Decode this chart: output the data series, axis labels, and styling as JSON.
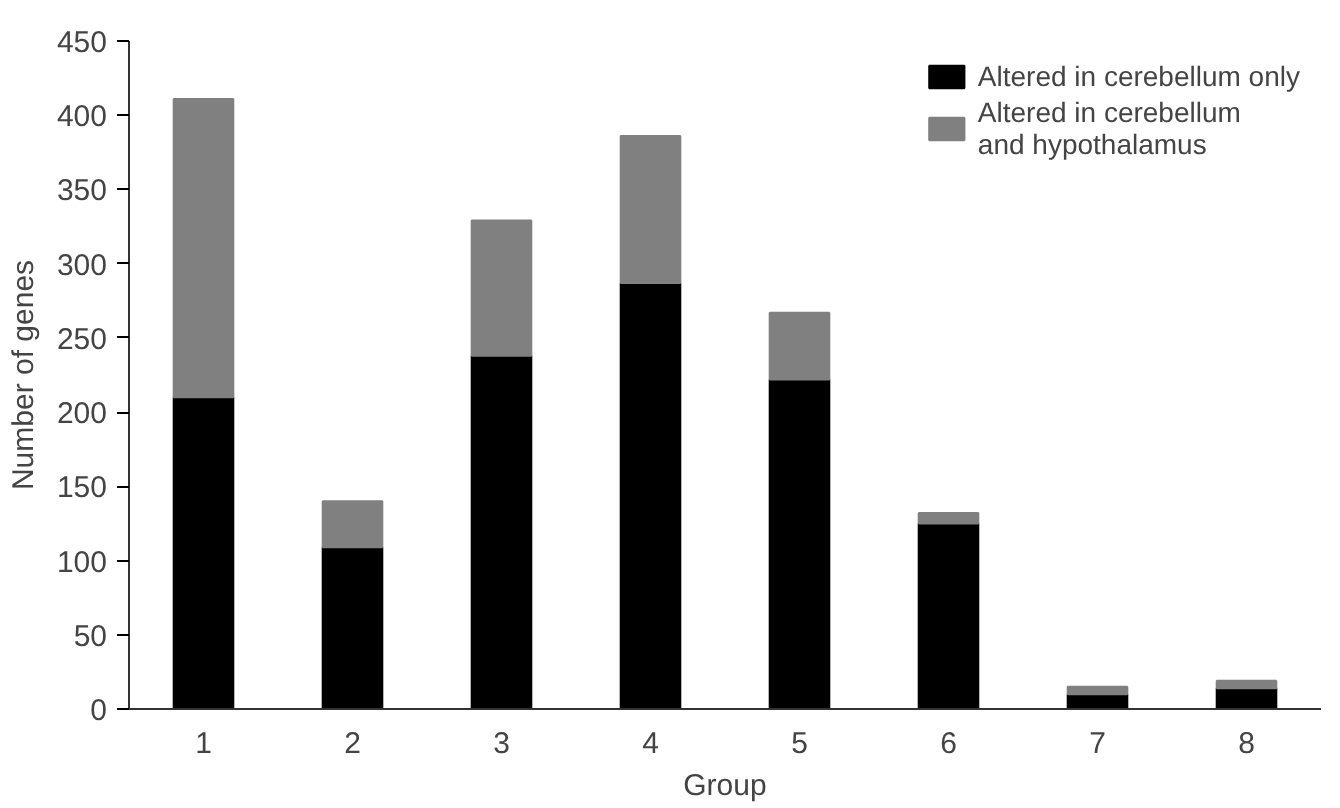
{
  "chart_data": {
    "type": "bar",
    "stacked": true,
    "xlabel": "Group",
    "ylabel": "Number of genes",
    "categories": [
      "1",
      "2",
      "3",
      "4",
      "5",
      "6",
      "7",
      "8"
    ],
    "series": [
      {
        "name": "Altered in cerebellum only",
        "color": "#000000",
        "values": [
          210,
          109,
          238,
          287,
          222,
          125,
          10,
          14
        ]
      },
      {
        "name": "Altered in cerebellum\nand hypothalamus",
        "color": "#808080",
        "values": [
          201,
          31,
          91,
          99,
          45,
          7,
          5,
          5
        ]
      }
    ],
    "ylim": [
      0,
      450
    ],
    "yticks": [
      0,
      50,
      100,
      150,
      200,
      250,
      300,
      350,
      400,
      450
    ],
    "grid": false,
    "legend": "top right"
  }
}
